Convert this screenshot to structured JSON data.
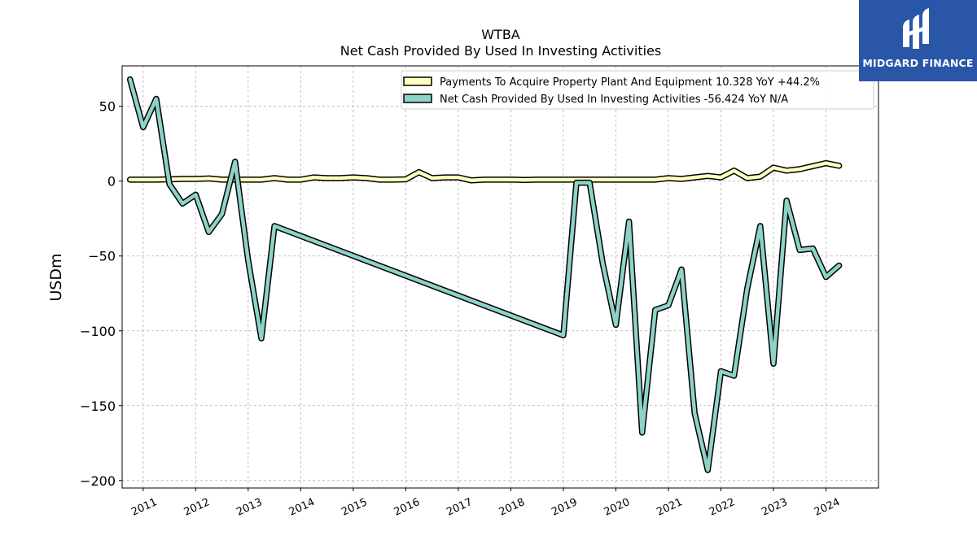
{
  "logo": {
    "text": "MIDGARD FINANCE",
    "icon": "midgard-logo-icon",
    "bg_color": "#2a56a8"
  },
  "chart_data": {
    "type": "line",
    "title": "WTBA",
    "subtitle": "Net Cash Provided By Used In Investing Activities",
    "ylabel": "USDm",
    "xlabel": "",
    "xlim": [
      2010.6,
      2025.0
    ],
    "ylim": [
      -205,
      77
    ],
    "yticks": [
      50,
      0,
      -50,
      -100,
      -150,
      -200
    ],
    "ytick_labels": [
      "50",
      "0",
      "−50",
      "−100",
      "−150",
      "−200"
    ],
    "xticks": [
      2011,
      2012,
      2013,
      2014,
      2015,
      2016,
      2017,
      2018,
      2019,
      2020,
      2021,
      2022,
      2023,
      2024
    ],
    "xtick_labels": [
      "2011",
      "2012",
      "2013",
      "2014",
      "2015",
      "2016",
      "2017",
      "2018",
      "2019",
      "2020",
      "2021",
      "2022",
      "2023",
      "2024"
    ],
    "grid": true,
    "legend_position": "top-right",
    "series": [
      {
        "name": "Payments To Acquire Property Plant And Equipment  10.328 YoY +44.2%",
        "color": "#ffffbf",
        "x": [
          2010.75,
          2011.0,
          2011.25,
          2011.5,
          2011.75,
          2012.0,
          2012.25,
          2012.5,
          2012.75,
          2013.0,
          2013.25,
          2013.5,
          2013.75,
          2014.0,
          2014.25,
          2014.5,
          2014.75,
          2015.0,
          2015.25,
          2015.5,
          2015.75,
          2016.0,
          2016.25,
          2016.5,
          2016.75,
          2017.0,
          2017.25,
          2017.5,
          2017.75,
          2018.0,
          2018.25,
          2018.5,
          2018.75,
          2019.0,
          2019.25,
          2019.5,
          2019.75,
          2020.0,
          2020.25,
          2020.5,
          2020.75,
          2021.0,
          2021.25,
          2021.5,
          2021.75,
          2022.0,
          2022.25,
          2022.5,
          2022.75,
          2023.0,
          2023.25,
          2023.5,
          2023.75,
          2024.0,
          2024.25
        ],
        "values": [
          1,
          1,
          1,
          1.2,
          1.5,
          1.5,
          1.8,
          1,
          1,
          1,
          1,
          2,
          1,
          1,
          2.5,
          2,
          2,
          2.5,
          2,
          1,
          1,
          1.2,
          6,
          2,
          2.5,
          2.5,
          0.5,
          1,
          1,
          1,
          0.8,
          1,
          1,
          1,
          1,
          1,
          1,
          1,
          1,
          1,
          1,
          2,
          1.5,
          2.5,
          3.5,
          2.5,
          7,
          2,
          3,
          9,
          7,
          8,
          10,
          12,
          10.3
        ]
      },
      {
        "name": "Net Cash Provided By Used In Investing Activities  -56.424 YoY N/A",
        "color": "#8dd3c7",
        "x": [
          2010.75,
          2011.0,
          2011.25,
          2011.5,
          2011.75,
          2012.0,
          2012.25,
          2012.5,
          2012.75,
          2013.0,
          2013.25,
          2013.5,
          2019.0,
          2019.25,
          2019.5,
          2019.75,
          2020.0,
          2020.25,
          2020.5,
          2020.75,
          2021.0,
          2021.25,
          2021.5,
          2021.75,
          2022.0,
          2022.25,
          2022.5,
          2022.75,
          2023.0,
          2023.25,
          2023.5,
          2023.75,
          2024.0,
          2024.25
        ],
        "values": [
          68,
          36,
          55,
          -2,
          -15,
          -9,
          -34,
          -22,
          13,
          -53,
          -105,
          -30,
          -103,
          -1,
          -1,
          -55,
          -96,
          -27,
          -168,
          -86,
          -83,
          -59,
          -155,
          -193,
          -127,
          -130,
          -72,
          -30,
          -122,
          -13,
          -46,
          -45,
          -64,
          -56.4
        ]
      }
    ]
  }
}
